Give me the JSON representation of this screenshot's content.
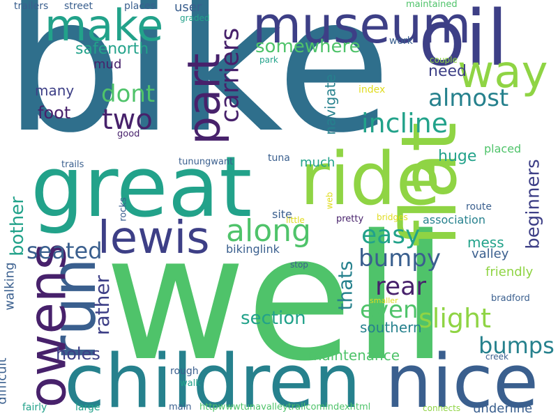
{
  "words": {
    "bike": "bike",
    "well": "well",
    "great": "great",
    "children": "children",
    "nice": "nice",
    "oil": "oil",
    "museum": "museum",
    "ride": "ride",
    "flat": "flat",
    "run": "run",
    "owens": "owens",
    "lewis": "lewis",
    "make": "make",
    "way": "way",
    "part": "part",
    "along": "along",
    "carriers": "carriers",
    "two": "two",
    "dont": "dont",
    "almost": "almost",
    "incline": "incline",
    "safenorth": "safenorth",
    "somewhere": "somewhere",
    "easy": "easy",
    "bumpy": "bumpy",
    "rear": "rear",
    "even": "even",
    "slight": "slight",
    "bumps": "bumps",
    "section": "section",
    "seated": "seated",
    "bother": "bother",
    "rather": "rather",
    "thats": "thats",
    "beginners": "beginners",
    "southern": "southern",
    "maintenance": "maintenance",
    "holes": "holes",
    "foot": "foot",
    "many": "many",
    "mud": "mud",
    "need": "need",
    "huge": "huge",
    "mess": "mess",
    "navigate": "navigate",
    "much": "much",
    "valley": "valley",
    "friendly": "friendly",
    "association": "association",
    "difficult": "difficult",
    "walking": "walking",
    "bikinglink": "bikinglink",
    "site": "site",
    "user": "user",
    "underline": "underline",
    "trailers": "trailers",
    "street": "street",
    "places": "places",
    "maintained": "maintained",
    "graded": "graded",
    "work": "work",
    "park": "park",
    "couple": "couple",
    "index": "index",
    "good": "good",
    "trails": "trails",
    "tunungwant": "tunungwant",
    "tuna": "tuna",
    "placed": "placed",
    "route": "route",
    "little": "little",
    "web": "web",
    "pretty": "pretty",
    "bridges": "bridges",
    "rocks": "rocks",
    "stop": "stop",
    "smaller": "smaller",
    "bradford": "bradford",
    "creek": "creek",
    "rough": "rough",
    "walk": "walk",
    "fairly": "fairly",
    "large": "large",
    "main": "main",
    "url": "httpwwwtunavalleytrailcomindexhtml",
    "connects": "connects"
  },
  "palette": {
    "teal_blue": "#2f6f8c",
    "green": "#4fc36a",
    "sea_green": "#22a28a",
    "lime": "#8fd444",
    "navy": "#3d3f86",
    "purple": "#47216b",
    "steel_blue": "#3a5f8e",
    "teal": "#26818d",
    "yellow": "#e0dc1e"
  }
}
